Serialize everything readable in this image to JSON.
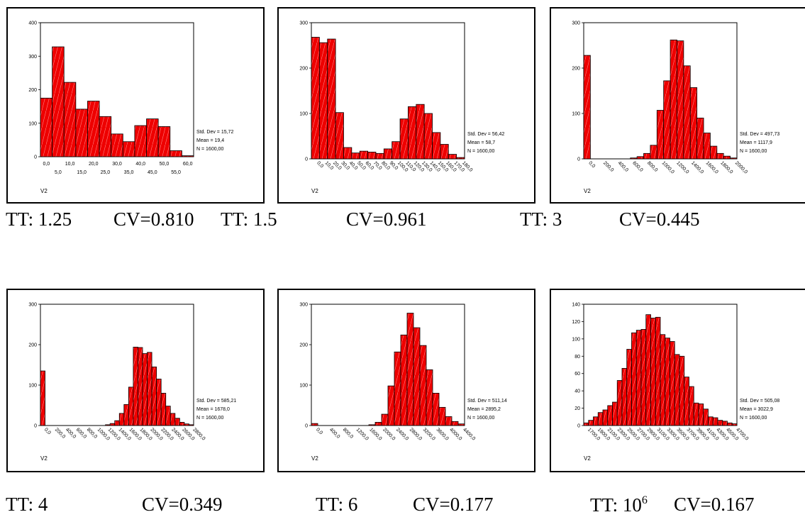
{
  "chart_data": [
    {
      "type": "bar",
      "xlabel": "V2",
      "ylim": [
        0,
        400
      ],
      "yticks": [
        0,
        100,
        200,
        300,
        400
      ],
      "tick_labels_top": [
        "0,0",
        "10,0",
        "20,0",
        "30,0",
        "40,0",
        "50,0",
        "60,0"
      ],
      "tick_labels_bottom": [
        "5,0",
        "15,0",
        "25,0",
        "35,0",
        "45,0",
        "55,0"
      ],
      "values": [
        175,
        328,
        222,
        142,
        166,
        120,
        68,
        45,
        93,
        113,
        90,
        18,
        3
      ],
      "stats": [
        "Std. Dev = 15,72",
        "Mean = 19,4",
        "N = 1600,00"
      ],
      "caption": {
        "tt": "TT: 1.25",
        "cv": "CV=0.810"
      }
    },
    {
      "type": "bar",
      "xlabel": "V2",
      "ylim": [
        0,
        300
      ],
      "yticks": [
        0,
        100,
        200,
        300
      ],
      "tick_labels": [
        "0,0",
        "10,0",
        "20,0",
        "30,0",
        "40,0",
        "50,0",
        "60,0",
        "70,0",
        "80,0",
        "90,0",
        "100,0",
        "110,0",
        "120,0",
        "130,0",
        "140,0",
        "150,0",
        "160,0",
        "170,0",
        "180,0"
      ],
      "values": [
        268,
        256,
        264,
        102,
        25,
        13,
        17,
        15,
        12,
        22,
        38,
        88,
        115,
        120,
        100,
        58,
        32,
        10,
        3
      ],
      "stats": [
        "Std. Dev = 56,42",
        "Mean = 58,7",
        "N = 1600,00"
      ],
      "caption": {
        "tt": "TT: 1.5",
        "cv": "CV=0.961"
      }
    },
    {
      "type": "bar",
      "xlabel": "V2",
      "ylim": [
        0,
        300
      ],
      "yticks": [
        0,
        100,
        200,
        300
      ],
      "tick_labels": [
        "0,0",
        "200,0",
        "400,0",
        "600,0",
        "800,0",
        "1000,0",
        "1200,0",
        "1400,0",
        "1600,0",
        "1800,0",
        "2000,0"
      ],
      "values": [
        228,
        0,
        0,
        0,
        0,
        0,
        0,
        2,
        5,
        12,
        30,
        107,
        172,
        262,
        260,
        205,
        157,
        90,
        57,
        28,
        12,
        6,
        2
      ],
      "stats": [
        "Std. Dev = 497,73",
        "Mean = 1117,9",
        "N = 1600,00"
      ],
      "caption": {
        "tt": "TT: 3",
        "cv": "CV=0.445"
      }
    },
    {
      "type": "bar",
      "xlabel": "V2",
      "ylim": [
        0,
        300
      ],
      "yticks": [
        0,
        100,
        200,
        300
      ],
      "tick_labels": [
        "0,0",
        "200,0",
        "400,0",
        "600,0",
        "800,0",
        "1000,0",
        "1200,0",
        "1400,0",
        "1600,0",
        "1800,0",
        "2000,0",
        "2200,0",
        "2400,0",
        "2600,0",
        "2800,0"
      ],
      "values": [
        135,
        0,
        0,
        0,
        0,
        0,
        0,
        0,
        0,
        0,
        0,
        0,
        0,
        0,
        2,
        5,
        12,
        30,
        52,
        95,
        194,
        193,
        178,
        181,
        145,
        115,
        80,
        48,
        30,
        18,
        8,
        4,
        2
      ],
      "stats": [
        "Std. Dev = 585,21",
        "Mean = 1678,0",
        "N = 1600,00"
      ],
      "caption": {
        "tt": "TT: 4",
        "cv": "CV=0.349"
      }
    },
    {
      "type": "bar",
      "xlabel": "V2",
      "ylim": [
        0,
        300
      ],
      "yticks": [
        0,
        100,
        200,
        300
      ],
      "tick_labels": [
        "0,0",
        "400,0",
        "800,0",
        "1200,0",
        "1600,0",
        "2000,0",
        "2400,0",
        "2800,0",
        "3200,0",
        "3600,0",
        "4000,0",
        "4400,0"
      ],
      "values": [
        5,
        0,
        0,
        0,
        0,
        0,
        0,
        0,
        0,
        2,
        8,
        28,
        98,
        182,
        224,
        278,
        242,
        198,
        138,
        80,
        45,
        22,
        10,
        4
      ],
      "stats": [
        "Std. Dev = 511,14",
        "Mean = 2895,2",
        "N = 1600,00"
      ],
      "caption": {
        "tt": "TT: 6",
        "cv": "CV=0.177"
      }
    },
    {
      "type": "bar",
      "xlabel": "V2",
      "ylim": [
        0,
        140
      ],
      "yticks": [
        0,
        20,
        40,
        60,
        80,
        100,
        120,
        140
      ],
      "tick_labels": [
        "1700,0",
        "1900,0",
        "2100,0",
        "2300,0",
        "2500,0",
        "2700,0",
        "2900,0",
        "3100,0",
        "3300,0",
        "3500,0",
        "3700,0",
        "3900,0",
        "4100,0",
        "4300,0",
        "4500,0",
        "4700,0"
      ],
      "values": [
        3,
        6,
        10,
        15,
        18,
        23,
        27,
        52,
        66,
        88,
        107,
        110,
        111,
        128,
        124,
        125,
        105,
        101,
        97,
        82,
        80,
        56,
        45,
        26,
        25,
        19,
        10,
        9,
        6,
        5,
        3,
        2
      ],
      "stats": [
        "Std. Dev = 505,08",
        "Mean = 3022,9",
        "N = 1600,00"
      ],
      "caption": {
        "tt": "TT: 10",
        "tt_sup": "6",
        "cv": "CV=0.167"
      }
    }
  ]
}
